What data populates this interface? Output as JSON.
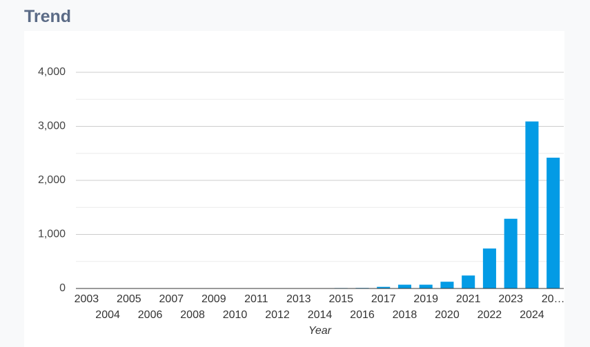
{
  "header": {
    "title": "Trend"
  },
  "chart_data": {
    "type": "bar",
    "x_label": "Year",
    "categories": [
      "2003",
      "2004",
      "2005",
      "2006",
      "2007",
      "2008",
      "2009",
      "2010",
      "2011",
      "2012",
      "2013",
      "2014",
      "2015",
      "2016",
      "2017",
      "2018",
      "2019",
      "2020",
      "2021",
      "2022",
      "2023",
      "2024",
      "20…"
    ],
    "values": [
      2,
      5,
      5,
      3,
      3,
      5,
      3,
      5,
      3,
      3,
      3,
      5,
      8,
      10,
      30,
      70,
      70,
      125,
      240,
      740,
      1290,
      3090,
      2420
    ],
    "color": "#039be5",
    "ylim": [
      0,
      4000
    ],
    "yticks": [
      0,
      {
        "value": 1000,
        "label": "1,000"
      },
      {
        "value": 2000,
        "label": "2,000"
      },
      {
        "value": 3000,
        "label": "3,000"
      },
      {
        "value": 4000,
        "label": "4,000"
      }
    ],
    "minor_yticks": [
      500,
      1500,
      2500,
      3500
    ],
    "grid": true
  }
}
